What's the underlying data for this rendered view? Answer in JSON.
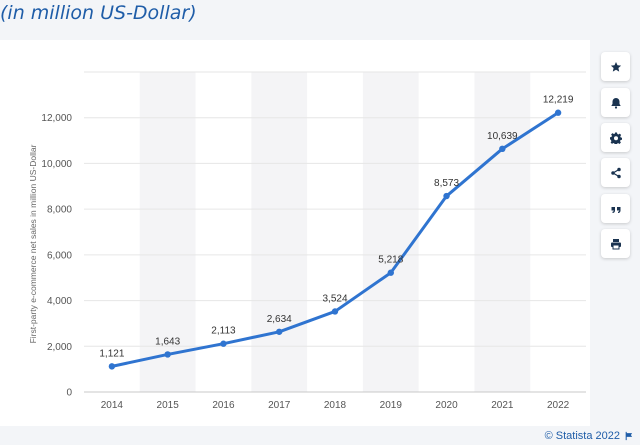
{
  "header": {
    "subtitle": "(in million US-Dollar)"
  },
  "chart_data": {
    "type": "line",
    "x": [
      "2014",
      "2015",
      "2016",
      "2017",
      "2018",
      "2019",
      "2020",
      "2021",
      "2022"
    ],
    "series": [
      {
        "values": [
          1121,
          1643,
          2113,
          2634,
          3524,
          5218,
          8573,
          10639,
          12219
        ]
      }
    ],
    "data_labels": [
      "1,121",
      "1,643",
      "2,113",
      "2,634",
      "3,524",
      "5,218",
      "8,573",
      "10,639",
      "12,219"
    ],
    "ylabel": "First-party e-commerce net sales in million US-Dollar",
    "ylim": [
      0,
      14000
    ],
    "yticks": [
      0,
      2000,
      4000,
      6000,
      8000,
      10000,
      12000
    ],
    "ytick_labels": [
      "0",
      "2,000",
      "4,000",
      "6,000",
      "8,000",
      "10,000",
      "12,000"
    ],
    "grid": true,
    "line_color": "#2f74d0"
  },
  "sidebar": {
    "buttons": [
      {
        "icon": "star-icon"
      },
      {
        "icon": "bell-icon"
      },
      {
        "icon": "gear-icon"
      },
      {
        "icon": "share-icon"
      },
      {
        "icon": "quote-icon"
      },
      {
        "icon": "print-icon"
      }
    ]
  },
  "footer": {
    "copyright": "© Statista 2022"
  }
}
